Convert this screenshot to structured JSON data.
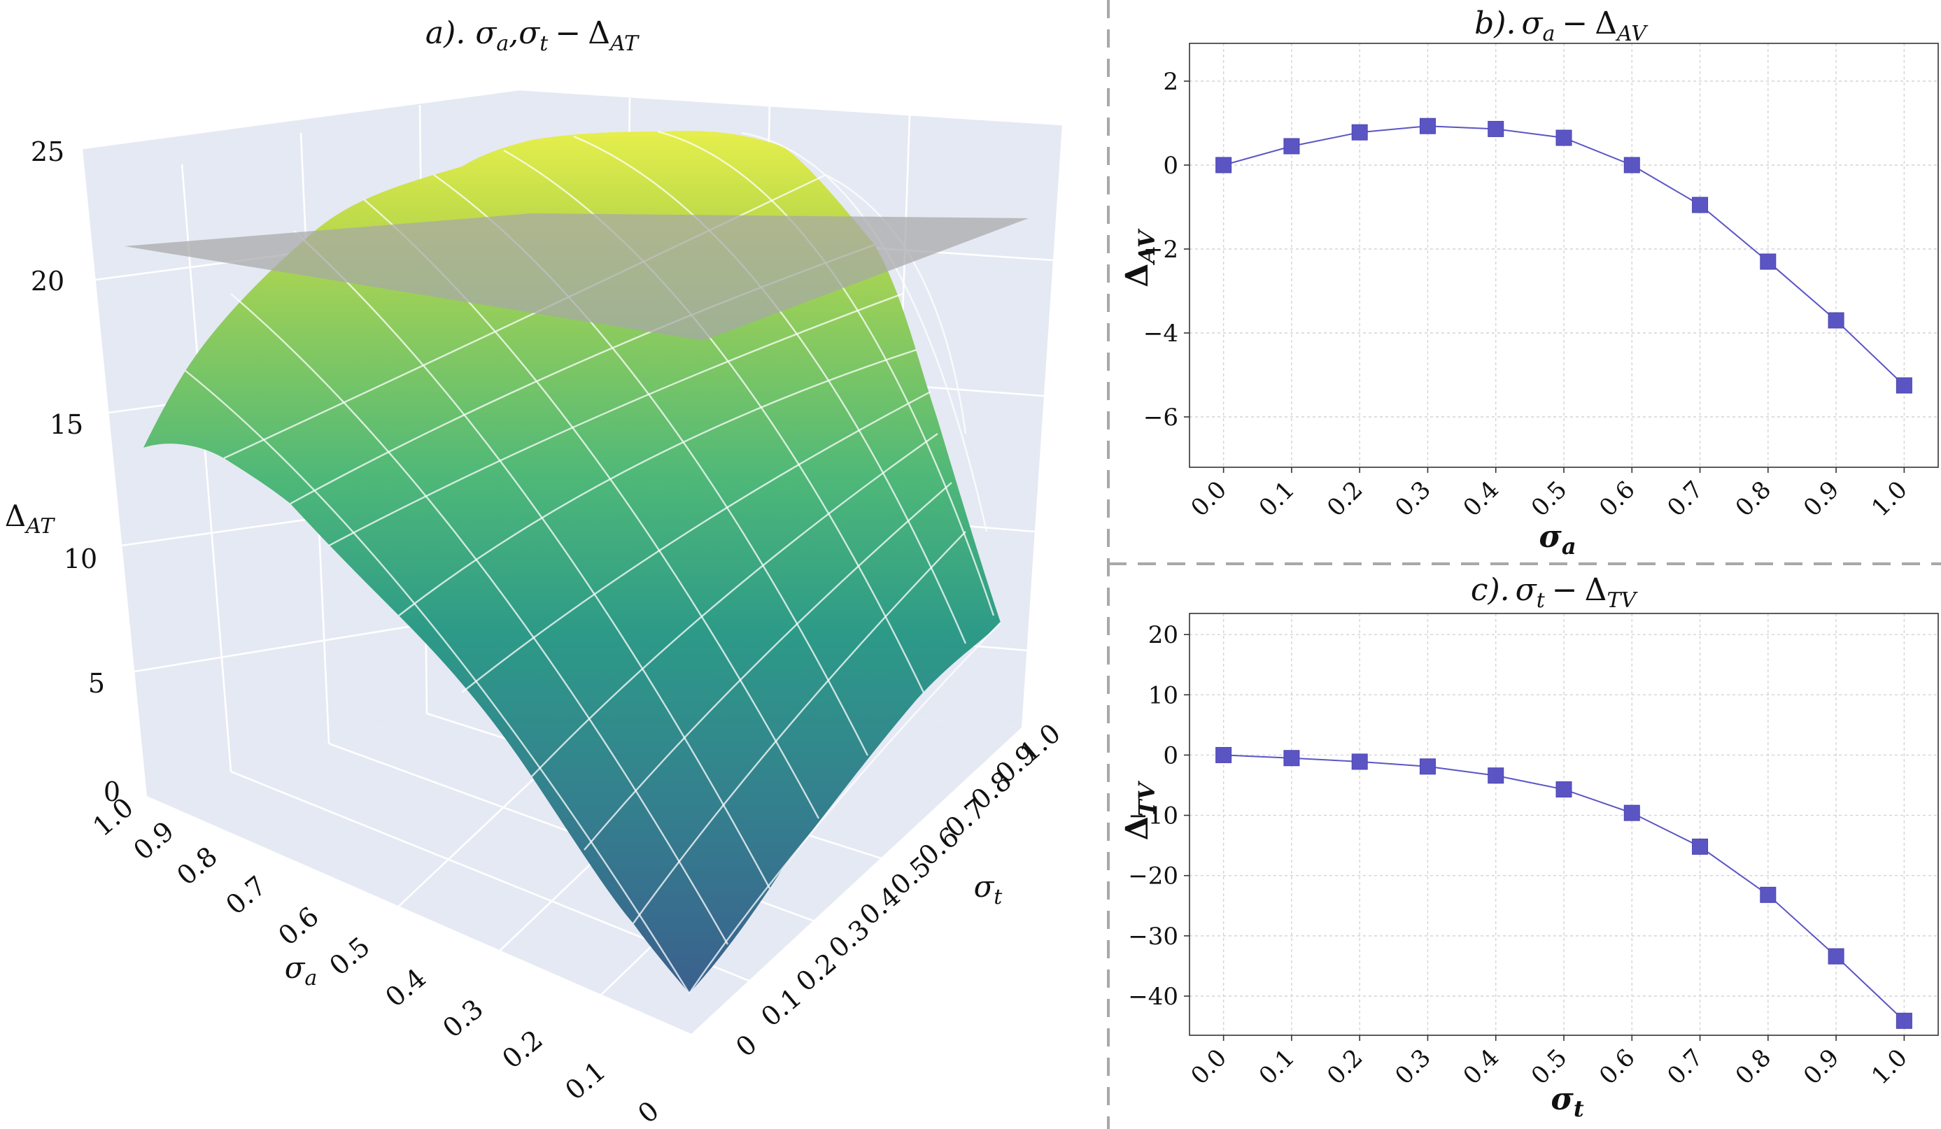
{
  "figure": {
    "divider_color": "#a8a8a8"
  },
  "chart_data": [
    {
      "id": "a",
      "type": "surface3d",
      "title": "a). σ_a, σ_t − Δ_AT",
      "title_parts": {
        "prefix": "a).",
        "var1": "σ",
        "sub1": "a",
        "sep": ",",
        "var2": "σ",
        "sub2": "t",
        "minus": "−",
        "delta": "Δ",
        "sub3": "AT"
      },
      "xlabel": "σa",
      "ylabel": "σt",
      "zlabel": "ΔAT",
      "x_ticks": [
        "0",
        "0.1",
        "0.2",
        "0.3",
        "0.4",
        "0.5",
        "0.6",
        "0.7",
        "0.8",
        "0.9",
        "1.0"
      ],
      "y_ticks": [
        "0",
        "0.1",
        "0.2",
        "0.3",
        "0.4",
        "0.5",
        "0.6",
        "0.7",
        "0.8",
        "0.9",
        "1.0"
      ],
      "z_ticks": [
        "0",
        "5",
        "10",
        "15",
        "20",
        "25"
      ],
      "zlim": [
        0,
        25
      ],
      "plane_z": 21.5,
      "colorscale": "viridis",
      "plane_color": "#a8a8a8"
    },
    {
      "id": "b",
      "type": "line",
      "title": "b). σa − ΔAV",
      "title_parts": {
        "prefix": "b).",
        "var": "σ",
        "sub": "a",
        "minus": "−",
        "delta": "Δ",
        "sub2": "AV"
      },
      "xlabel": "σa",
      "xlabel_parts": {
        "var": "σ",
        "sub": "a"
      },
      "ylabel": "ΔAV",
      "ylabel_parts": {
        "delta": "Δ",
        "sub": "AV"
      },
      "x": [
        0.0,
        0.1,
        0.2,
        0.3,
        0.4,
        0.5,
        0.6,
        0.7,
        0.8,
        0.9,
        1.0
      ],
      "x_tick_labels": [
        "0.0",
        "0.1",
        "0.2",
        "0.3",
        "0.4",
        "0.5",
        "0.6",
        "0.7",
        "0.8",
        "0.9",
        "1.0"
      ],
      "y": [
        0.0,
        0.45,
        0.78,
        0.93,
        0.86,
        0.65,
        0.0,
        -0.95,
        -2.3,
        -3.7,
        -5.25
      ],
      "y_ticks": [
        2,
        0,
        -2,
        -4,
        -6
      ],
      "y_tick_labels": [
        "2",
        "0",
        "−2",
        "−4",
        "−6"
      ],
      "xlim": [
        -0.05,
        1.05
      ],
      "ylim": [
        -7.2,
        2.9
      ],
      "color": "#5b55c4"
    },
    {
      "id": "c",
      "type": "line",
      "title": "c). σt − ΔTV",
      "title_parts": {
        "prefix": "c).",
        "var": "σ",
        "sub": "t",
        "minus": "−",
        "delta": "Δ",
        "sub2": "TV"
      },
      "xlabel": "σt",
      "xlabel_parts": {
        "var": "σ",
        "sub": "t"
      },
      "ylabel": "ΔTV",
      "ylabel_parts": {
        "delta": "Δ",
        "sub": "TV"
      },
      "x": [
        0.0,
        0.1,
        0.2,
        0.3,
        0.4,
        0.5,
        0.6,
        0.7,
        0.8,
        0.9,
        1.0
      ],
      "x_tick_labels": [
        "0.0",
        "0.1",
        "0.2",
        "0.3",
        "0.4",
        "0.5",
        "0.6",
        "0.7",
        "0.8",
        "0.9",
        "1.0"
      ],
      "y": [
        0.0,
        -0.5,
        -1.1,
        -1.9,
        -3.4,
        -5.7,
        -9.6,
        -15.2,
        -23.2,
        -33.4,
        -44.1
      ],
      "y_ticks": [
        20,
        10,
        0,
        -10,
        -20,
        -30,
        -40
      ],
      "y_tick_labels": [
        "20",
        "10",
        "0",
        "−10",
        "−20",
        "−30",
        "−40"
      ],
      "xlim": [
        -0.05,
        1.05
      ],
      "ylim": [
        -46.5,
        23.5
      ],
      "color": "#5b55c4"
    }
  ]
}
